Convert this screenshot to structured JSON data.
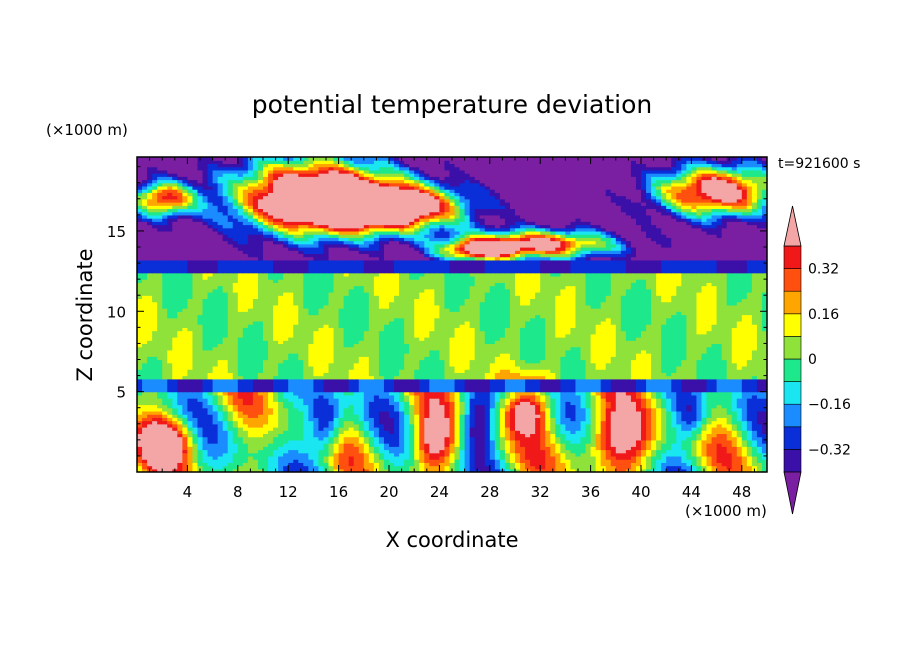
{
  "chart_data": {
    "type": "heatmap",
    "title": "potential temperature deviation",
    "xlabel": "X coordinate",
    "ylabel": "Z coordinate",
    "x_unit": "(×1000 m)",
    "y_unit": "(×1000 m)",
    "time_label": "t=921600 s",
    "xlim": [
      0,
      50
    ],
    "ylim": [
      0,
      19.6
    ],
    "x_ticks": [
      "4",
      "8",
      "12",
      "16",
      "20",
      "24",
      "28",
      "32",
      "36",
      "40",
      "44",
      "48"
    ],
    "y_ticks": [
      "5",
      "10",
      "15"
    ],
    "colorbar": {
      "levels": [
        -0.4,
        -0.32,
        -0.24,
        -0.16,
        -0.08,
        0,
        0.08,
        0.16,
        0.24,
        0.32,
        0.4
      ],
      "tick_labels": [
        "0.32",
        "0.16",
        "0",
        "−0.16",
        "−0.32"
      ],
      "colors": [
        "#7b1fa2",
        "#3a10a8",
        "#0a2fd8",
        "#1a8cff",
        "#19e6f0",
        "#1ee88c",
        "#8ee23a",
        "#ffff00",
        "#ffa500",
        "#ff5010",
        "#f01818",
        "#f4a6a6"
      ],
      "extend": "both"
    },
    "features": [
      {
        "region": "upper layer z 13-19.6",
        "dominant_value": "< -0.4",
        "embedded_anomaly": "> 0.4"
      },
      {
        "region": "band z 12.6-13.2",
        "dominant_value": "-0.32 to -0.24"
      },
      {
        "region": "mid layer z 5.5-12.5",
        "dominant_value": "0 to 0.08"
      },
      {
        "region": "band z 5.2-5.7",
        "dominant_value": "-0.32 to -0.24"
      },
      {
        "region": "lower layer z 0-5",
        "dominant_value": "mixed -0.4 to 0.4",
        "warm_cells_near_x": [
          2.5,
          23.5,
          38
        ]
      }
    ]
  }
}
